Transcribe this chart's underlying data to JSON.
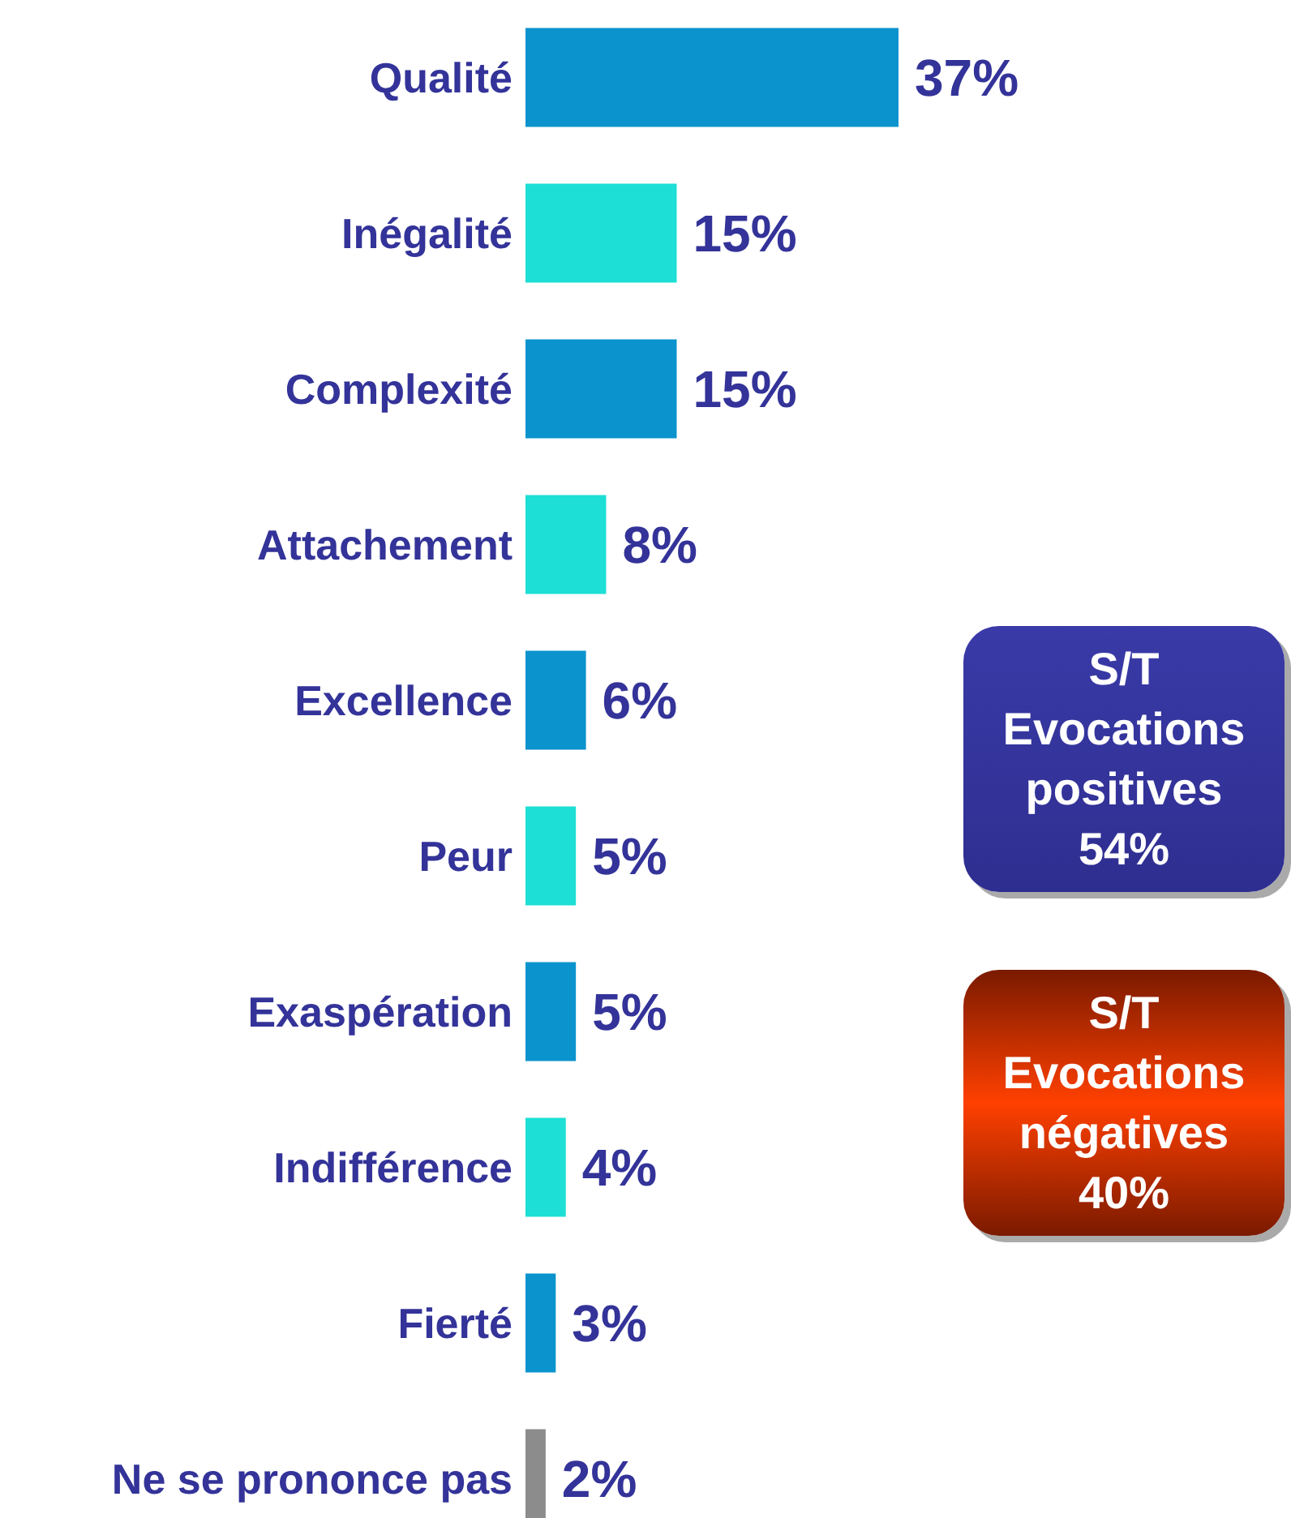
{
  "chart_data": {
    "type": "bar",
    "orientation": "horizontal",
    "categories": [
      "Qualité",
      "Inégalité",
      "Complexité",
      "Attachement",
      "Excellence",
      "Peur",
      "Exaspération",
      "Indifférence",
      "Fierté",
      "Ne se prononce pas"
    ],
    "values": [
      37,
      15,
      15,
      8,
      6,
      5,
      5,
      4,
      3,
      2
    ],
    "colors": [
      "#0a93cc",
      "#1ddfd6",
      "#0a93cc",
      "#1ddfd6",
      "#0a93cc",
      "#1ddfd6",
      "#0a93cc",
      "#1ddfd6",
      "#0a93cc",
      "#8c8c8c"
    ],
    "value_labels": [
      "37%",
      "15%",
      "15%",
      "8%",
      "6%",
      "5%",
      "5%",
      "4%",
      "3%",
      "2%"
    ],
    "annotations": [
      "S/T\nEvocations\npositives\n54%",
      "S/T\nEvocations\nnégatives\n40%"
    ]
  }
}
